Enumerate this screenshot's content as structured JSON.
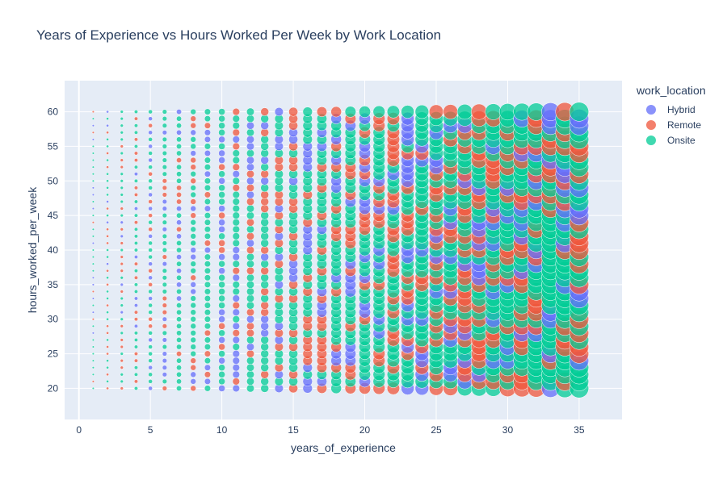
{
  "chart_data": {
    "type": "scatter",
    "title": "Years of Experience vs Hours Worked Per Week by Work Location",
    "xlabel": "years_of_experience",
    "ylabel": "hours_worked_per_week",
    "xlim": [
      -1,
      38
    ],
    "ylim": [
      15.5,
      64.5
    ],
    "x_ticks": [
      "0",
      "5",
      "10",
      "15",
      "20",
      "25",
      "30",
      "35"
    ],
    "y_ticks": [
      "20",
      "25",
      "30",
      "35",
      "40",
      "45",
      "50",
      "55",
      "60"
    ],
    "marker_size_variable": "years_of_experience",
    "grid": true,
    "legend_title": "work_location",
    "legend_position": "top-right",
    "x_range_observed": [
      1,
      35
    ],
    "y_range_observed": [
      20,
      60
    ],
    "series": [
      {
        "name": "Hybrid",
        "color": "#636efa"
      },
      {
        "name": "Remote",
        "color": "#ef553b"
      },
      {
        "name": "Onsite",
        "color": "#00cc96"
      }
    ]
  }
}
